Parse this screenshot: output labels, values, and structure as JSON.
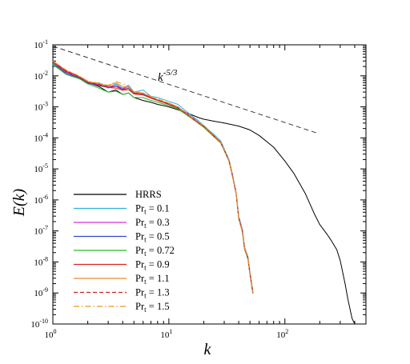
{
  "chart_data": {
    "type": "line",
    "xlabel": "k",
    "ylabel": "E(k)",
    "xscale": "log",
    "yscale": "log",
    "xlim": [
      1,
      500
    ],
    "ylim": [
      1e-10,
      0.1
    ],
    "x_major_ticks": [
      1,
      10,
      100
    ],
    "y_major_ticks": [
      1e-10,
      1e-09,
      1e-08,
      1e-07,
      1e-06,
      1e-05,
      0.0001,
      0.001,
      0.01,
      0.1
    ],
    "grid": false,
    "legend_position": "bottom-left",
    "annotation": {
      "text_base": "k",
      "text_exponent": "-5/3",
      "reference_line": {
        "style": "dashed",
        "color": "#333333",
        "x": [
          1,
          190
        ],
        "y": [
          0.09,
          0.000142
        ]
      }
    },
    "series": [
      {
        "name_base": "HRRS",
        "name_sub": "",
        "name_value": "",
        "color": "#000000",
        "dash": "solid",
        "x": [
          1,
          1.2,
          1.5,
          2,
          2.5,
          3,
          3.5,
          4,
          4.5,
          5,
          6,
          7,
          8,
          9,
          10,
          12,
          15,
          18,
          20,
          25,
          30,
          40,
          50,
          60,
          80,
          100,
          120,
          150,
          180,
          200,
          230,
          250,
          280,
          300,
          330,
          350,
          380,
          400
        ],
        "y": [
          0.03,
          0.016,
          0.01,
          0.006,
          0.0045,
          0.003,
          0.0035,
          0.0025,
          0.0028,
          0.002,
          0.0016,
          0.0014,
          0.0012,
          0.0011,
          0.001,
          0.0008,
          0.0006,
          0.00045,
          0.0004,
          0.00034,
          0.0003,
          0.00024,
          0.00018,
          0.00012,
          5e-05,
          1.8e-05,
          7e-06,
          1.6e-06,
          3.5e-07,
          1.6e-07,
          8e-08,
          5e-08,
          2.5e-08,
          1.1e-08,
          2e-09,
          6e-10,
          1.5e-10,
          6e-11
        ]
      },
      {
        "name_base": "Pr",
        "name_sub": "t",
        "name_value": " = 0.1",
        "color": "#2fb4d9",
        "dash": "solid",
        "x": [
          1,
          1.3,
          1.7,
          2,
          2.5,
          3,
          3.5,
          4,
          4.5,
          5,
          6,
          7,
          8,
          10,
          12,
          15,
          18,
          20,
          25,
          28,
          30,
          33,
          35,
          38,
          40,
          43,
          45,
          48,
          50,
          53
        ],
        "y": [
          0.022,
          0.012,
          0.008,
          0.0055,
          0.006,
          0.004,
          0.0055,
          0.004,
          0.005,
          0.003,
          0.0035,
          0.0022,
          0.002,
          0.0015,
          0.0012,
          0.0006,
          0.00035,
          0.00025,
          0.00012,
          8e-05,
          4.5e-05,
          2e-05,
          8e-06,
          1.8e-06,
          3e-07,
          1.2e-07,
          3e-08,
          1.5e-08,
          5e-09,
          1.2e-09
        ]
      },
      {
        "name_base": "Pr",
        "name_sub": "t",
        "name_value": " = 0.3",
        "color": "#d633d6",
        "dash": "solid",
        "x": [
          1,
          1.3,
          1.7,
          2,
          2.5,
          3,
          3.5,
          4,
          4.5,
          5,
          6,
          7,
          8,
          10,
          12,
          15,
          18,
          20,
          25,
          28,
          30,
          33,
          35,
          38,
          40,
          43,
          45,
          48,
          50,
          53
        ],
        "y": [
          0.026,
          0.013,
          0.009,
          0.006,
          0.005,
          0.0045,
          0.005,
          0.0038,
          0.0045,
          0.0028,
          0.0028,
          0.002,
          0.0017,
          0.0013,
          0.001,
          0.00055,
          0.00032,
          0.00024,
          0.00011,
          7.5e-05,
          4.2e-05,
          1.9e-05,
          7.5e-06,
          1.7e-06,
          2.8e-07,
          1.1e-07,
          2.8e-08,
          1.4e-08,
          4.5e-09,
          1.1e-09
        ]
      },
      {
        "name_base": "Pr",
        "name_sub": "t",
        "name_value": " = 0.5",
        "color": "#3347cc",
        "dash": "solid",
        "x": [
          1,
          1.3,
          1.7,
          2,
          2.5,
          3,
          3.5,
          4,
          4.5,
          5,
          6,
          7,
          8,
          10,
          12,
          15,
          18,
          20,
          25,
          28,
          30,
          33,
          35,
          38,
          40,
          43,
          45,
          48,
          50,
          53
        ],
        "y": [
          0.025,
          0.012,
          0.0085,
          0.0058,
          0.0048,
          0.0042,
          0.0045,
          0.0036,
          0.004,
          0.0027,
          0.0026,
          0.0019,
          0.0016,
          0.0012,
          0.0009,
          0.0005,
          0.0003,
          0.00023,
          0.000105,
          7e-05,
          4e-05,
          1.8e-05,
          7e-06,
          1.6e-06,
          2.6e-07,
          1e-07,
          2.6e-08,
          1.3e-08,
          4.2e-09,
          1e-09
        ]
      },
      {
        "name_base": "Pr",
        "name_sub": "t",
        "name_value": " = 0.72",
        "color": "#22bb22",
        "dash": "solid",
        "x": [
          1,
          1.3,
          1.7,
          2,
          2.5,
          3,
          3.5,
          4,
          4.5,
          5,
          6,
          7,
          8,
          10,
          12,
          15,
          18,
          20,
          25,
          28,
          30,
          33,
          35,
          38,
          40,
          43,
          45,
          48,
          50,
          53
        ],
        "y": [
          0.024,
          0.011,
          0.008,
          0.0055,
          0.004,
          0.003,
          0.0032,
          0.0025,
          0.0028,
          0.002,
          0.002,
          0.0016,
          0.0014,
          0.0011,
          0.00085,
          0.00048,
          0.00029,
          0.00022,
          0.0001,
          6.8e-05,
          3.9e-05,
          1.75e-05,
          6.8e-06,
          1.55e-06,
          2.5e-07,
          9.5e-08,
          2.5e-08,
          1.25e-08,
          4e-09,
          9.5e-10
        ]
      },
      {
        "name_base": "Pr",
        "name_sub": "t",
        "name_value": " = 0.9",
        "color": "#dd2222",
        "dash": "solid",
        "x": [
          1,
          1.3,
          1.7,
          2,
          2.5,
          3,
          3.5,
          4,
          4.5,
          5,
          6,
          7,
          8,
          10,
          12,
          15,
          18,
          20,
          25,
          28,
          30,
          33,
          35,
          38,
          40,
          43,
          45,
          48,
          50,
          53
        ],
        "y": [
          0.028,
          0.014,
          0.009,
          0.0062,
          0.0052,
          0.0042,
          0.004,
          0.0034,
          0.0036,
          0.0026,
          0.0024,
          0.0019,
          0.0016,
          0.0012,
          0.00092,
          0.0005,
          0.0003,
          0.00023,
          0.000105,
          7e-05,
          4e-05,
          1.8e-05,
          7e-06,
          1.6e-06,
          2.6e-07,
          1e-07,
          2.6e-08,
          1.3e-08,
          4.2e-09,
          1e-09
        ]
      },
      {
        "name_base": "Pr",
        "name_sub": "t",
        "name_value": " = 1.1",
        "color": "#ee8833",
        "dash": "solid",
        "x": [
          1,
          1.3,
          1.7,
          2,
          2.5,
          3,
          3.5,
          4,
          4.5,
          5,
          6,
          7,
          8,
          10,
          12,
          15,
          18,
          20,
          25,
          28,
          30,
          33,
          35,
          38,
          40,
          43,
          45,
          48,
          50,
          53
        ],
        "y": [
          0.03,
          0.015,
          0.0095,
          0.0065,
          0.0055,
          0.0048,
          0.006,
          0.0045,
          0.0042,
          0.003,
          0.0027,
          0.0021,
          0.0017,
          0.0013,
          0.00095,
          0.00052,
          0.00031,
          0.00024,
          0.00011,
          7.2e-05,
          4.1e-05,
          1.85e-05,
          7.2e-06,
          1.65e-06,
          2.7e-07,
          1.05e-07,
          2.7e-08,
          1.35e-08,
          4.3e-09,
          1.05e-09
        ]
      },
      {
        "name_base": "Pr",
        "name_sub": "t",
        "name_value": " = 1.3",
        "color": "#cc2222",
        "dash": "dashed",
        "x": [
          1,
          1.3,
          1.7,
          2,
          2.5,
          3,
          3.5,
          4,
          4.5,
          5,
          6,
          7,
          8,
          10,
          12,
          15,
          18,
          20,
          25,
          28,
          30,
          33,
          35,
          38,
          40,
          43,
          45,
          48,
          50,
          53
        ],
        "y": [
          0.029,
          0.0145,
          0.0092,
          0.0063,
          0.0053,
          0.0045,
          0.0045,
          0.0038,
          0.0038,
          0.0027,
          0.0025,
          0.002,
          0.00165,
          0.00125,
          0.00093,
          0.00051,
          0.000305,
          0.000235,
          0.000107,
          7.1e-05,
          4.05e-05,
          1.82e-05,
          7.1e-06,
          1.62e-06,
          2.65e-07,
          1.02e-07,
          2.65e-08,
          1.32e-08,
          4.25e-09,
          1.02e-09
        ]
      },
      {
        "name_base": "Pr",
        "name_sub": "t",
        "name_value": " = 1.5",
        "color": "#e39a1c",
        "dash": "dashdot",
        "x": [
          1,
          1.3,
          1.7,
          2,
          2.5,
          3,
          3.5,
          4,
          4.5,
          5,
          6,
          7,
          8,
          10,
          12,
          15,
          18,
          20,
          25,
          28,
          30,
          33,
          35,
          38,
          40,
          43,
          45,
          48,
          50,
          53
        ],
        "y": [
          0.03,
          0.0155,
          0.0098,
          0.0068,
          0.0058,
          0.005,
          0.0065,
          0.0055,
          0.0045,
          0.0031,
          0.0028,
          0.0022,
          0.0018,
          0.00135,
          0.00098,
          0.00053,
          0.00032,
          0.000245,
          0.000112,
          7.3e-05,
          4.15e-05,
          1.87e-05,
          7.3e-06,
          1.67e-06,
          2.75e-07,
          1.07e-07,
          2.75e-08,
          1.37e-08,
          4.35e-09,
          1.07e-09
        ]
      }
    ]
  }
}
